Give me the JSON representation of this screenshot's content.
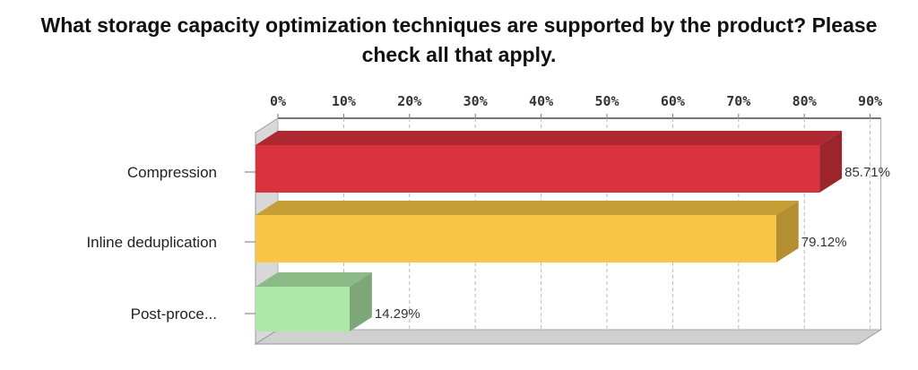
{
  "chart_data": {
    "type": "bar",
    "orientation": "horizontal",
    "style": "3d",
    "title": "What storage capacity optimization techniques are supported by the product? Please check all that apply.",
    "categories": [
      "Compression",
      "Inline deduplication",
      "Post-proce..."
    ],
    "values": [
      85.71,
      79.12,
      14.29
    ],
    "data_labels": [
      "85.71%",
      "79.12%",
      "14.29%"
    ],
    "colors": [
      "#d8323c",
      "#f8c644",
      "#aee8a8"
    ],
    "xlim": [
      0,
      90
    ],
    "x_ticks": [
      "0%",
      "10%",
      "20%",
      "30%",
      "40%",
      "50%",
      "60%",
      "70%",
      "80%",
      "90%"
    ],
    "axis_position": "top",
    "grid": true,
    "xlabel": "",
    "ylabel": ""
  }
}
